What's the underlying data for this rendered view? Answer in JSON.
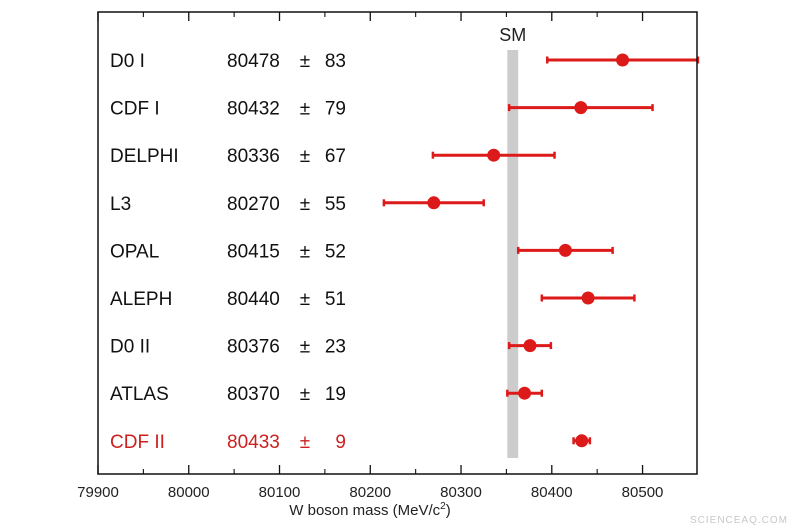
{
  "chart_data": {
    "type": "scatter",
    "title": "",
    "xlabel": "W boson mass (MeV/c",
    "xlabel_sup": "2",
    "xlabel_suffix": ")",
    "xlim": [
      79900,
      80560
    ],
    "x_ticks": [
      79900,
      80000,
      80100,
      80200,
      80300,
      80400,
      80500
    ],
    "x_tick_labels": [
      "79900",
      "80000",
      "80100",
      "80200",
      "80300",
      "80400",
      "80500"
    ],
    "grid": false,
    "sm": {
      "label": "SM",
      "value": 80357,
      "half_width": 6,
      "color": "#cccccc"
    },
    "pm_symbol": "±",
    "colors": {
      "normal": "#111111",
      "highlight": "#cc1f1f",
      "marker": "#dd1a1a",
      "band": "#cccccc"
    },
    "measurements": [
      {
        "name": "D0 I",
        "value_label": "80478",
        "err_label": "83",
        "value": 80478,
        "error": 83,
        "highlight": false
      },
      {
        "name": "CDF I",
        "value_label": "80432",
        "err_label": "79",
        "value": 80432,
        "error": 79,
        "highlight": false
      },
      {
        "name": "DELPHI",
        "value_label": "80336",
        "err_label": "67",
        "value": 80336,
        "error": 67,
        "highlight": false
      },
      {
        "name": "L3",
        "value_label": "80270",
        "err_label": "55",
        "value": 80270,
        "error": 55,
        "highlight": false
      },
      {
        "name": "OPAL",
        "value_label": "80415",
        "err_label": "52",
        "value": 80415,
        "error": 52,
        "highlight": false
      },
      {
        "name": "ALEPH",
        "value_label": "80440",
        "err_label": "51",
        "value": 80440,
        "error": 51,
        "highlight": false
      },
      {
        "name": "D0 II",
        "value_label": "80376",
        "err_label": "23",
        "value": 80376,
        "error": 23,
        "highlight": false
      },
      {
        "name": "ATLAS",
        "value_label": "80370",
        "err_label": "19",
        "value": 80370,
        "error": 19,
        "highlight": false
      },
      {
        "name": "CDF II",
        "value_label": "80433",
        "err_label": "9",
        "value": 80433,
        "error": 9,
        "highlight": true
      }
    ]
  },
  "watermark": "SCIENCEAQ.COM"
}
